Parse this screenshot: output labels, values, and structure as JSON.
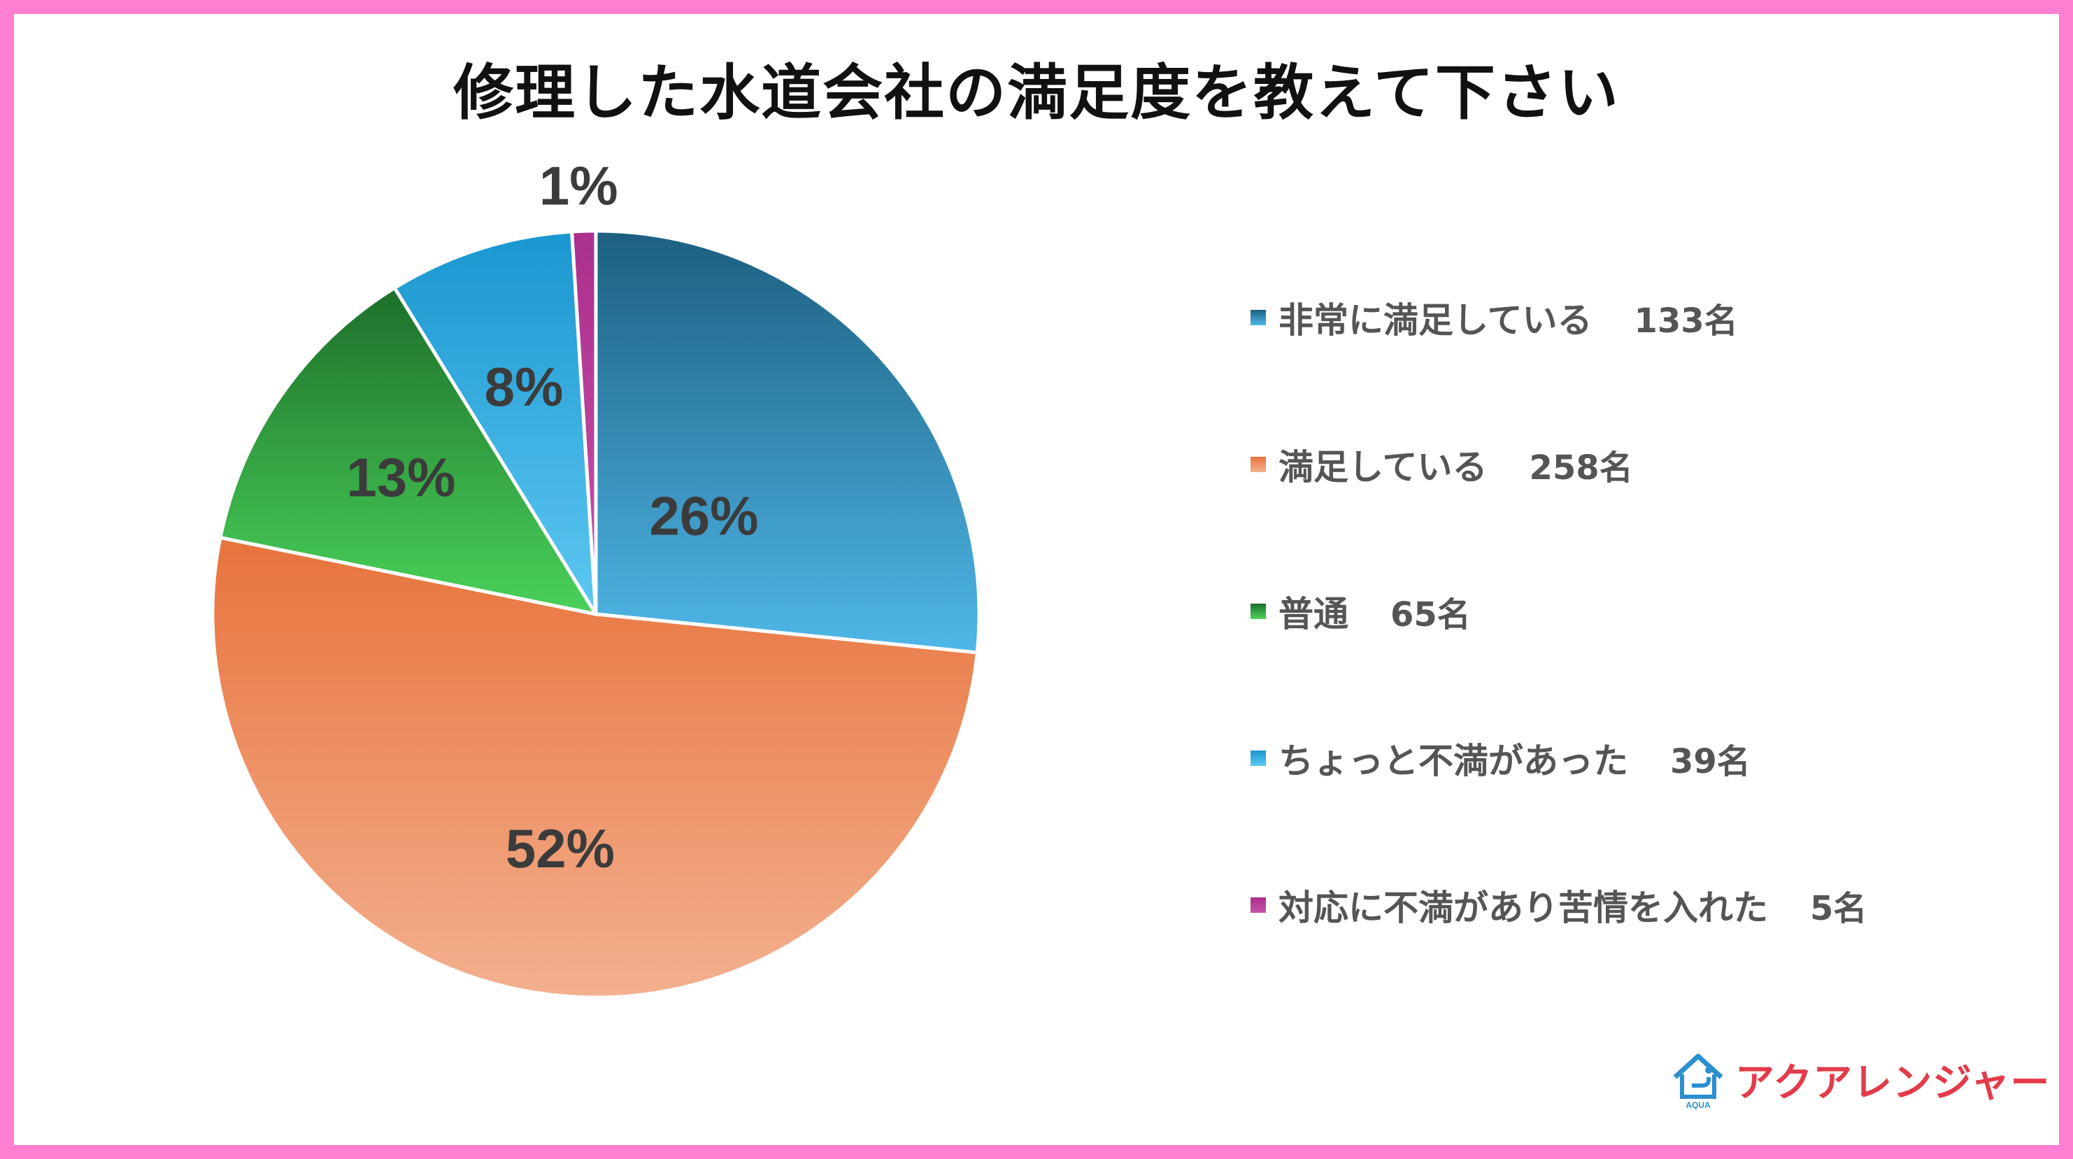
{
  "title": "修理した水道会社の満足度を教えて下さい",
  "chart_data": {
    "type": "pie",
    "slices": [
      {
        "label": "非常に満足している",
        "count": "133名",
        "value": 133,
        "percent_label": "26%",
        "color_top": "#1d5f80",
        "color_bottom": "#4fb7e8"
      },
      {
        "label": "満足している",
        "count": "258名",
        "value": 258,
        "percent_label": "52%",
        "color_top": "#e8733c",
        "color_bottom": "#f3b08f"
      },
      {
        "label": "普通",
        "count": "65名",
        "value": 65,
        "percent_label": "13%",
        "color_top": "#1d6f2a",
        "color_bottom": "#4ad25a"
      },
      {
        "label": "ちょっと不満があった",
        "count": "39名",
        "value": 39,
        "percent_label": "8%",
        "color_top": "#1a96d0",
        "color_bottom": "#5ec8f2"
      },
      {
        "label": "対応に不満があり苦情を入れた",
        "count": "5名",
        "value": 5,
        "percent_label": "1%",
        "color_top": "#a9308c",
        "color_bottom": "#c752a8"
      }
    ],
    "legend_position": "right",
    "start": "top",
    "direction": "clockwise"
  },
  "logo": {
    "text": "アクアレンジャー",
    "mark_text": "AQUA",
    "color": "#e33b4a"
  }
}
